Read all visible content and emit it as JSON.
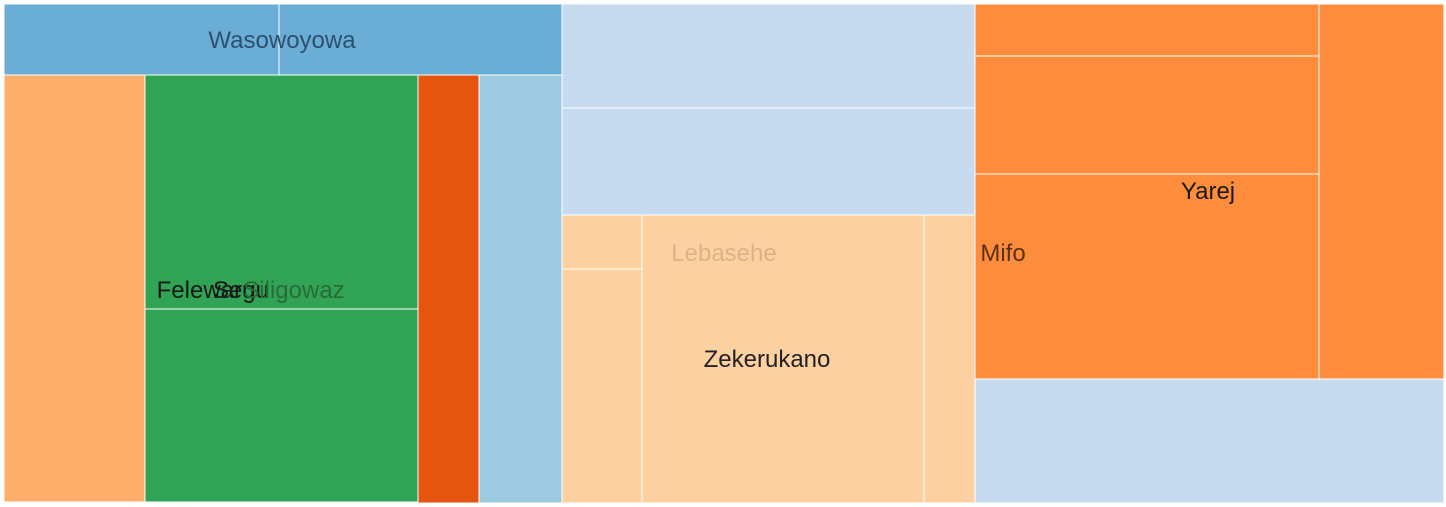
{
  "chart_data": {
    "type": "treemap",
    "colors": {
      "blue_mid": "#6aaed6",
      "blue_light": "#9ecae1",
      "blue_pale": "#c6dbef",
      "orange_light": "#fdae6b",
      "orange_pale": "#fdd0a2",
      "orange_mid": "#fd8d3c",
      "orange_dark": "#e6550d",
      "green": "#31a354"
    },
    "cells": [
      {
        "id": "c1",
        "color": "blue_mid"
      },
      {
        "id": "c2",
        "color": "blue_mid"
      },
      {
        "id": "c3",
        "color": "orange_light"
      },
      {
        "id": "c4",
        "color": "green"
      },
      {
        "id": "c5",
        "color": "green"
      },
      {
        "id": "c6",
        "color": "orange_dark"
      },
      {
        "id": "c7",
        "color": "blue_light"
      },
      {
        "id": "c8",
        "color": "blue_pale"
      },
      {
        "id": "c9",
        "color": "blue_pale"
      },
      {
        "id": "c10",
        "color": "orange_pale"
      },
      {
        "id": "c11",
        "color": "orange_pale"
      },
      {
        "id": "c12",
        "color": "orange_pale"
      },
      {
        "id": "c13",
        "color": "orange_pale"
      },
      {
        "id": "c14",
        "color": "orange_mid"
      },
      {
        "id": "c15",
        "color": "orange_mid"
      },
      {
        "id": "c16",
        "color": "orange_mid"
      },
      {
        "id": "c17",
        "color": "orange_mid"
      },
      {
        "id": "c18",
        "color": "blue_pale"
      }
    ],
    "labels": [
      {
        "id": "l1",
        "text": "Wasowoyowa",
        "color": "#2f4f6f",
        "size": 24
      },
      {
        "id": "l2",
        "text": "Felewaru",
        "color": "#1a1a1a",
        "size": 24
      },
      {
        "id": "l3",
        "text": "Segu",
        "color": "#1a1a1a",
        "size": 24
      },
      {
        "id": "l4",
        "text": "Siligowaz",
        "color": "#2a6b3a",
        "size": 24
      },
      {
        "id": "l5",
        "text": "Lebasehe",
        "color": "#e0b08a",
        "size": 24
      },
      {
        "id": "l6",
        "text": "Zekerukano",
        "color": "#222222",
        "size": 24
      },
      {
        "id": "l7",
        "text": "Mifo",
        "color": "#5a3010",
        "size": 24
      },
      {
        "id": "l8",
        "text": "Yarej",
        "color": "#1a1a1a",
        "size": 24
      }
    ]
  }
}
